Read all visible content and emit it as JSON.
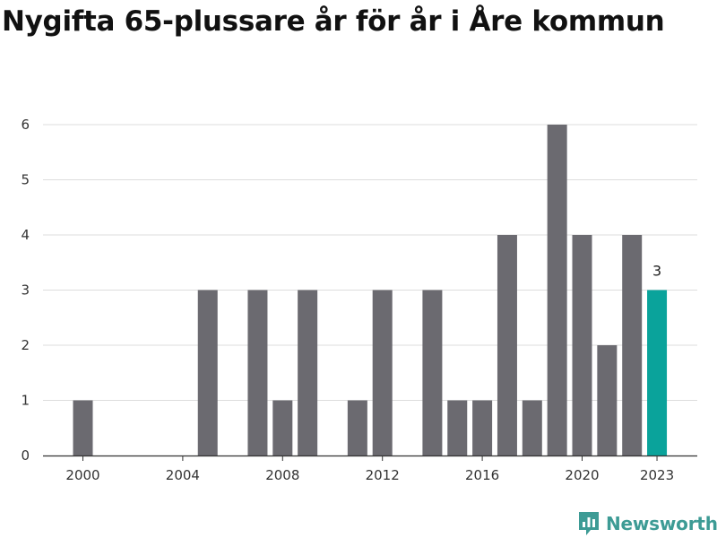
{
  "title": "Nygifta 65-plussare år för år i Åre kommun",
  "brand": {
    "name": "Newsworthy",
    "icon": "newsworthy-logo-icon",
    "color": "#3d9b95"
  },
  "chart_data": {
    "type": "bar",
    "title": "Nygifta 65-plussare år för år i Åre kommun",
    "xlabel": "",
    "ylabel": "",
    "categories": [
      2000,
      2001,
      2002,
      2003,
      2004,
      2005,
      2006,
      2007,
      2008,
      2009,
      2010,
      2011,
      2012,
      2013,
      2014,
      2015,
      2016,
      2017,
      2018,
      2019,
      2020,
      2021,
      2022,
      2023
    ],
    "values": [
      1,
      0,
      0,
      0,
      0,
      3,
      0,
      3,
      1,
      3,
      0,
      1,
      3,
      0,
      3,
      1,
      1,
      4,
      1,
      6,
      4,
      2,
      4,
      3
    ],
    "x_tick_labels": [
      "2000",
      "2004",
      "2008",
      "2012",
      "2016",
      "2020",
      "2023"
    ],
    "y_ticks": [
      0,
      1,
      2,
      3,
      4,
      5,
      6
    ],
    "ylim": [
      0,
      6
    ],
    "grid": true,
    "legend": "none",
    "bar_color": "#6b6a70",
    "highlight_color": "#0aa39b",
    "highlight_category": 2023,
    "highlight_label": "3"
  }
}
